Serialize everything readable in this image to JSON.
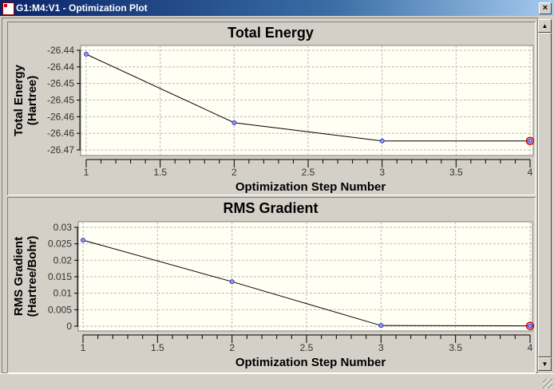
{
  "window": {
    "title": "G1:M4:V1 - Optimization Plot",
    "close_label": "×"
  },
  "chart_data": [
    {
      "type": "line",
      "title": "Total Energy",
      "xlabel": "Optimization Step Number",
      "ylabel": [
        "Total Energy",
        "(Hartree)"
      ],
      "x": [
        1,
        2,
        3,
        4
      ],
      "y": [
        -26.4412,
        -26.4618,
        -26.4673,
        -26.4673
      ],
      "xlim": [
        1,
        4
      ],
      "ylim": [
        -26.47,
        -26.44
      ],
      "xticks": [
        1,
        1.5,
        2,
        2.5,
        3,
        3.5,
        4
      ],
      "xtick_labels": [
        "1",
        "1.5",
        "2",
        "2.5",
        "3",
        "3.5",
        "4"
      ],
      "yticks": [
        -26.44,
        -26.445,
        -26.45,
        -26.455,
        -26.46,
        -26.465,
        -26.47
      ],
      "ytick_labels": [
        "-26.44",
        "-26.44",
        "-26.45",
        "-26.45",
        "-26.46",
        "-26.46",
        "-26.47"
      ],
      "grid": true,
      "highlighted_point": 4,
      "line_color": "#000000",
      "marker_color": "#3333cc",
      "highlight_color": "#cc0000",
      "plot_bg": "#fffff4"
    },
    {
      "type": "line",
      "title": "RMS Gradient",
      "xlabel": "Optimization Step Number",
      "ylabel": [
        "RMS Gradient",
        "(Hartree/Bohr)"
      ],
      "x": [
        1,
        2,
        3,
        4
      ],
      "y": [
        0.0261,
        0.0135,
        0.0002,
        0.0001
      ],
      "xlim": [
        1,
        4
      ],
      "ylim": [
        0,
        0.03
      ],
      "xticks": [
        1,
        1.5,
        2,
        2.5,
        3,
        3.5,
        4
      ],
      "xtick_labels": [
        "1",
        "1.5",
        "2",
        "2.5",
        "3",
        "3.5",
        "4"
      ],
      "yticks": [
        0.03,
        0.025,
        0.02,
        0.015,
        0.01,
        0.005,
        0
      ],
      "ytick_labels": [
        "0.03",
        "0.025",
        "0.02",
        "0.015",
        "0.01",
        "0.005",
        "0"
      ],
      "grid": true,
      "highlighted_point": 4,
      "line_color": "#000000",
      "marker_color": "#3333cc",
      "highlight_color": "#cc0000",
      "plot_bg": "#fffff4"
    }
  ]
}
